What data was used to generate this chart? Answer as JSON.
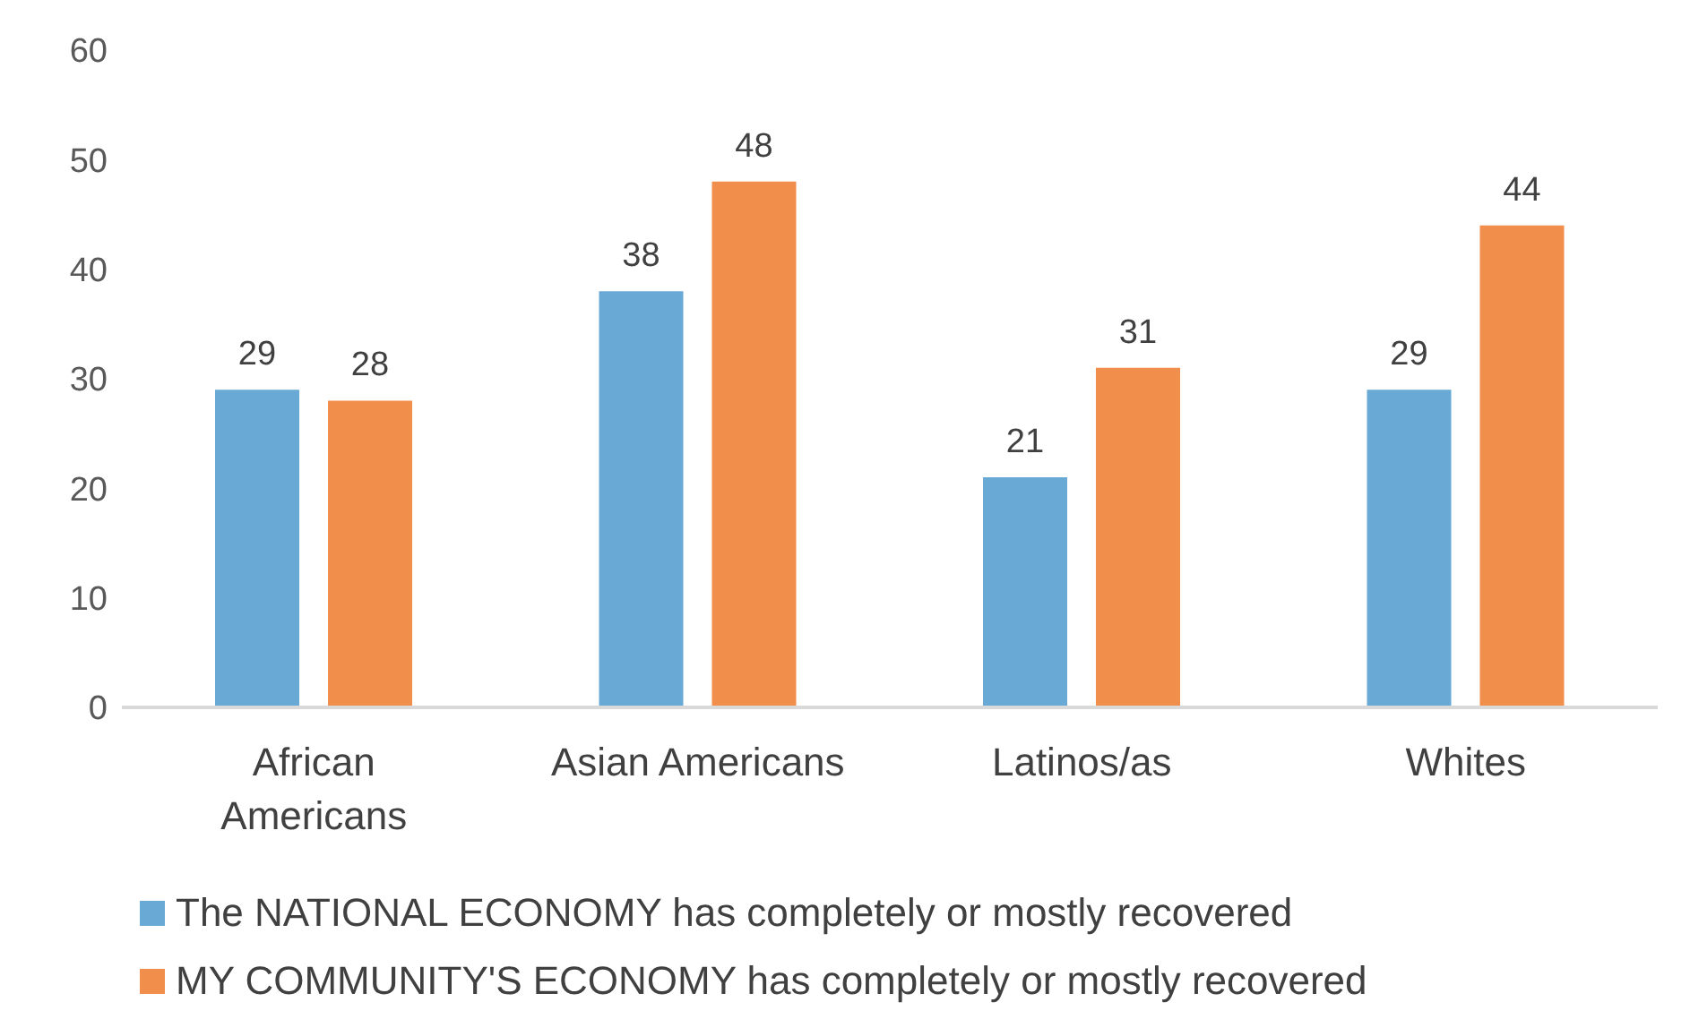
{
  "chart_data": {
    "type": "bar",
    "categories": [
      "African Americans",
      "Asian Americans",
      "Latinos/as",
      "Whites"
    ],
    "series": [
      {
        "name": "The NATIONAL ECONOMY has completely or mostly recovered",
        "color": "#68a9d6",
        "values": [
          29,
          38,
          21,
          29
        ]
      },
      {
        "name": "MY COMMUNITY'S ECONOMY has completely or mostly recovered",
        "color": "#f28e4b",
        "values": [
          28,
          48,
          31,
          44
        ]
      }
    ],
    "ylim": [
      0,
      60
    ],
    "yticks": [
      0,
      10,
      20,
      30,
      40,
      50,
      60
    ],
    "data_labels": true,
    "grid": false,
    "legend": "bottom"
  }
}
